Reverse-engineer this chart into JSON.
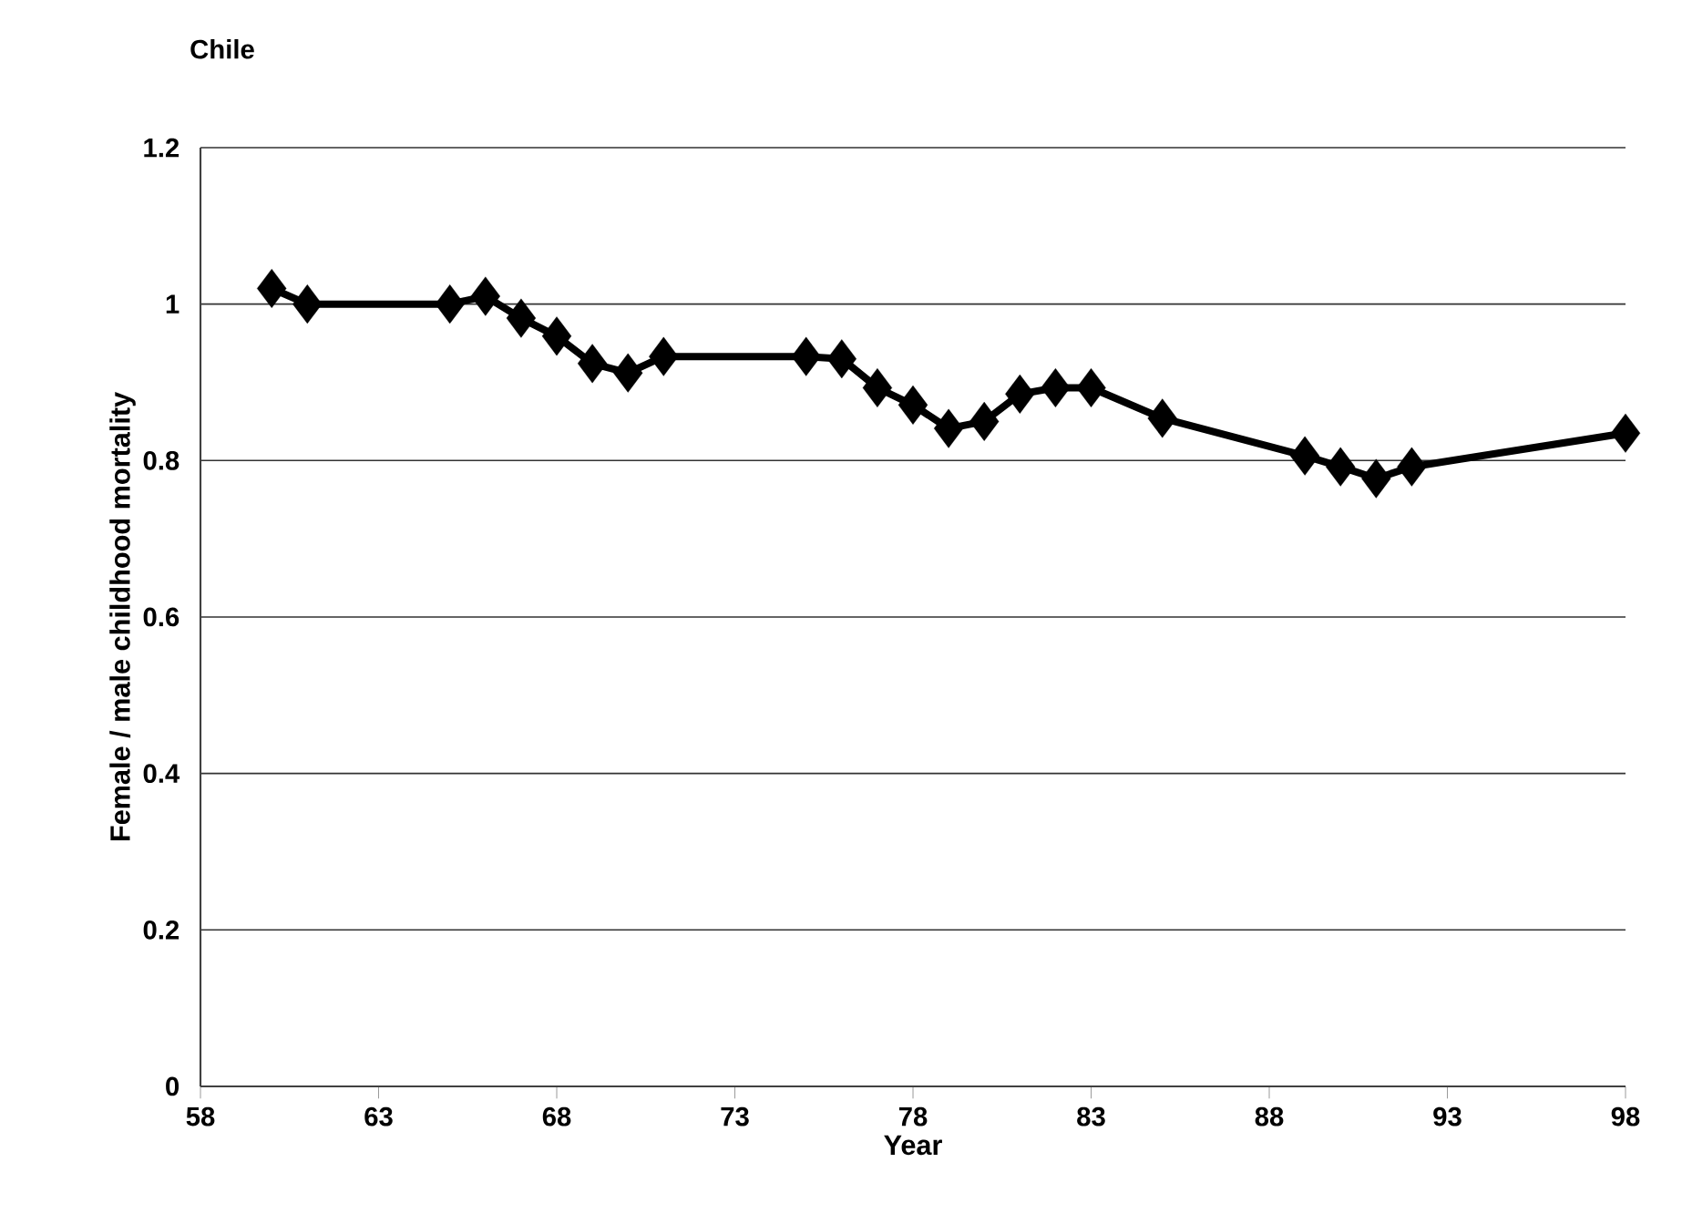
{
  "chart_data": {
    "type": "line",
    "title": "Chile",
    "xlabel": "Year",
    "ylabel": "Female / male childhood mortality",
    "x": [
      60,
      61,
      65,
      66,
      67,
      68,
      69,
      70,
      71,
      75,
      76,
      77,
      78,
      79,
      80,
      81,
      82,
      83,
      85,
      89,
      90,
      91,
      92,
      98
    ],
    "values": [
      1.02,
      1.0,
      1.0,
      1.01,
      0.982,
      0.959,
      0.924,
      0.912,
      0.933,
      0.933,
      0.93,
      0.893,
      0.871,
      0.841,
      0.85,
      0.885,
      0.893,
      0.893,
      0.854,
      0.806,
      0.792,
      0.777,
      0.792,
      0.835
    ],
    "color": "#000000",
    "marker": "diamond",
    "line_style": "solid",
    "grid": "y",
    "legend": false,
    "xlim": [
      58,
      98
    ],
    "xticks": [
      58,
      63,
      68,
      73,
      78,
      83,
      88,
      93,
      98
    ],
    "ylim": [
      0,
      1.2
    ],
    "yticks": [
      0,
      0.2,
      0.4,
      0.6,
      0.8,
      1,
      1.2
    ]
  }
}
